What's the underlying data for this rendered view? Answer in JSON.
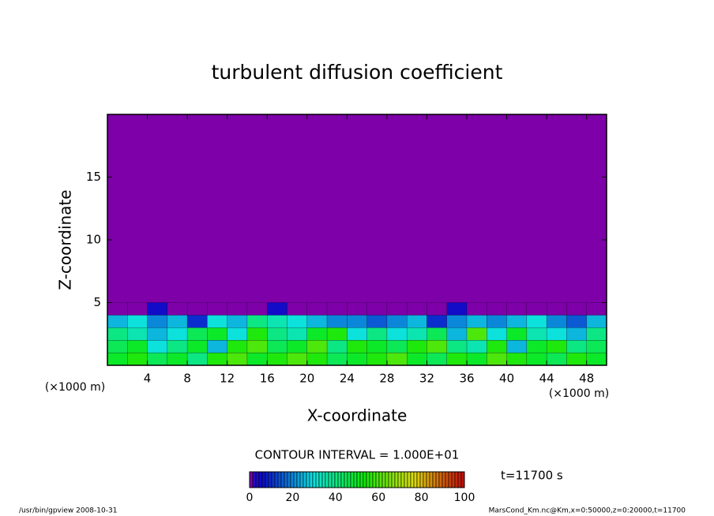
{
  "chart_data": {
    "type": "contour",
    "title": "turbulent diffusion coefficient",
    "xlabel": "X-coordinate",
    "ylabel": "Z-coordinate",
    "xunit": "(×1000 m)",
    "yunit": "(×1000 m)",
    "xlim": [
      0,
      50
    ],
    "ylim": [
      0,
      20
    ],
    "xticks": [
      4,
      8,
      12,
      16,
      20,
      24,
      28,
      32,
      36,
      40,
      44,
      48
    ],
    "yticks": [
      5,
      10,
      15
    ],
    "field": {
      "x": [
        1,
        3,
        5,
        7,
        9,
        11,
        13,
        15,
        17,
        19,
        21,
        23,
        25,
        27,
        29,
        31,
        33,
        35,
        37,
        39,
        41,
        43,
        45,
        47,
        49
      ],
      "z": [
        0.5,
        1.5,
        2.5,
        3.5,
        4.5
      ],
      "values": [
        [
          50,
          55,
          45,
          50,
          40,
          55,
          60,
          50,
          55,
          60,
          55,
          45,
          50,
          55,
          60,
          50,
          45,
          55,
          50,
          60,
          55,
          50,
          45,
          55,
          50
        ],
        [
          45,
          50,
          30,
          40,
          50,
          25,
          55,
          60,
          45,
          50,
          60,
          40,
          55,
          50,
          45,
          55,
          60,
          40,
          35,
          55,
          25,
          50,
          55,
          40,
          45
        ],
        [
          40,
          35,
          25,
          30,
          45,
          50,
          30,
          55,
          40,
          35,
          50,
          55,
          30,
          40,
          30,
          35,
          45,
          25,
          60,
          30,
          50,
          35,
          30,
          25,
          40
        ],
        [
          25,
          30,
          20,
          25,
          10,
          30,
          25,
          40,
          35,
          30,
          25,
          20,
          20,
          15,
          20,
          25,
          10,
          20,
          25,
          20,
          25,
          30,
          20,
          15,
          25
        ],
        [
          0,
          0,
          5,
          0,
          0,
          0,
          0,
          0,
          5,
          0,
          0,
          0,
          0,
          0,
          0,
          0,
          0,
          5,
          0,
          0,
          0,
          0,
          0,
          0,
          0
        ]
      ]
    },
    "colorbar": {
      "lim": [
        0,
        100
      ],
      "ticks": [
        0,
        20,
        40,
        60,
        80,
        100
      ]
    },
    "contour_note": "CONTOUR INTERVAL = 1.000E+01",
    "time_label": "t=11700 s",
    "footer_left": "/usr/bin/gpview  2008-10-31",
    "footer_right": "MarsCond_Km.nc@Km,x=0:50000,z=0:20000,t=11700"
  }
}
